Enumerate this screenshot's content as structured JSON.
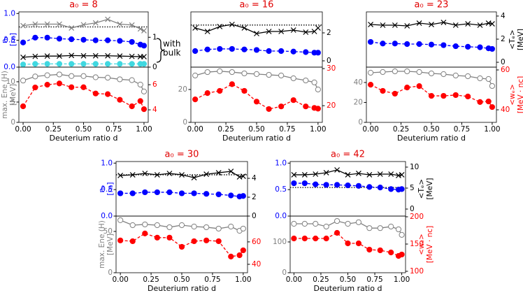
{
  "chart_data": [
    {
      "type": "line",
      "title": "a₀ = 8",
      "x": [
        0,
        0.1,
        0.2,
        0.3,
        0.4,
        0.5,
        0.6,
        0.7,
        0.8,
        0.9,
        0.97,
        1.0
      ],
      "xlim": [
        -0.035,
        1.035
      ],
      "ylim": [
        0,
        1.03
      ],
      "yticks": [
        {
          "value": 0,
          "label": "0.0"
        },
        {
          "value": 0.5,
          "label": "0.5"
        },
        {
          "value": 1,
          "label": "1.0"
        }
      ],
      "ycolor": "#0000ff",
      "ylabel": [
        "nₑ",
        "[n₀]"
      ],
      "y2lim": [
        0,
        1.85
      ],
      "y2ticks": [
        0,
        1
      ],
      "y2color": "#000000",
      "hline": 0.75,
      "annotation": [
        "with",
        "bulk"
      ],
      "series": [
        {
          "color": "#808080",
          "marker": "x",
          "filled": false,
          "linestyle": "solid",
          "axis": "y2",
          "values": [
            1.39,
            1.44,
            1.44,
            1.44,
            1.31,
            1.42,
            1.48,
            1.6,
            1.44,
            1.41,
            1.28,
            1.22
          ]
        },
        {
          "color": "#0000ff",
          "marker": "o",
          "filled": true,
          "linestyle": "dashed",
          "values": [
            0.46,
            0.55,
            0.55,
            0.53,
            0.52,
            0.51,
            0.5,
            0.5,
            0.49,
            0.47,
            0.42,
            0.4
          ]
        },
        {
          "color": "#000000",
          "marker": "x",
          "filled": false,
          "linestyle": "solid",
          "axis": "y2",
          "values": [
            0.33,
            0.36,
            0.37,
            0.37,
            0.39,
            0.38,
            0.38,
            0.38,
            0.37,
            0.36,
            0.35,
            0.35
          ]
        },
        {
          "color": "#40d8e0",
          "marker": "o",
          "filled": true,
          "linestyle": "dashed",
          "values": [
            0.05,
            0.06,
            0.06,
            0.06,
            0.06,
            0.06,
            0.06,
            0.06,
            0.06,
            0.06,
            0.06,
            0.06
          ]
        }
      ]
    },
    {
      "type": "line",
      "x": [
        0,
        0.1,
        0.2,
        0.3,
        0.4,
        0.5,
        0.6,
        0.7,
        0.8,
        0.9,
        0.97,
        1.0
      ],
      "xlim": [
        -0.035,
        1.035
      ],
      "xticks": [
        {
          "value": 0,
          "label": "0.00"
        },
        {
          "value": 0.25,
          "label": "0.25"
        },
        {
          "value": 0.5,
          "label": "0.50"
        },
        {
          "value": 0.75,
          "label": "0.75"
        },
        {
          "value": 1,
          "label": "1.00"
        }
      ],
      "xlabel": "Deuterium ratio d",
      "ylim": [
        0,
        13.6
      ],
      "yticks": [
        0,
        5,
        10
      ],
      "ycolor": "#808080",
      "ylabel": [
        "max. Ene (H)",
        "[MeV]"
      ],
      "y2lim": [
        3,
        7.4
      ],
      "y2ticks": [
        4,
        6
      ],
      "y2color": "#ff0000",
      "series": [
        {
          "color": "#808080",
          "marker": "o",
          "filled": false,
          "linestyle": "solid",
          "values": [
            10.3,
            11.3,
            11.6,
            11.8,
            11.4,
            11.4,
            11.1,
            11.0,
            10.6,
            10.4,
            9.3,
            7.6
          ]
        },
        {
          "color": "#ff0000",
          "marker": "o",
          "filled": true,
          "linestyle": "dashed",
          "axis": "y2",
          "values": [
            4.28,
            5.78,
            6.0,
            6.1,
            5.8,
            5.8,
            5.3,
            5.25,
            4.8,
            4.28,
            4.7,
            4.05
          ]
        }
      ]
    },
    {
      "type": "line",
      "title": "a₀ = 16",
      "x": [
        0,
        0.1,
        0.2,
        0.3,
        0.4,
        0.5,
        0.6,
        0.7,
        0.8,
        0.9,
        0.97,
        1.0
      ],
      "xlim": [
        -0.035,
        1.035
      ],
      "ylim": [
        0,
        1.03
      ],
      "ycolor": "#0000ff",
      "y2lim": [
        -0.45,
        3.5
      ],
      "y2ticks": [
        0,
        2
      ],
      "y2color": "#000000",
      "hline": 0.785,
      "series": [
        {
          "color": "#000000",
          "marker": "x",
          "filled": false,
          "linestyle": "solid",
          "axis": "y2",
          "values": [
            2.35,
            2.1,
            2.45,
            2.6,
            2.35,
            1.95,
            2.1,
            2.1,
            2.2,
            2.05,
            2.1,
            2.35
          ]
        },
        {
          "color": "#0000ff",
          "marker": "o",
          "filled": true,
          "linestyle": "dashed",
          "values": [
            0.3,
            0.33,
            0.34,
            0.34,
            0.33,
            0.32,
            0.3,
            0.3,
            0.29,
            0.28,
            0.27,
            0.27
          ]
        }
      ]
    },
    {
      "type": "line",
      "x": [
        0,
        0.1,
        0.2,
        0.3,
        0.4,
        0.5,
        0.6,
        0.7,
        0.8,
        0.9,
        0.97,
        1.0
      ],
      "xlim": [
        -0.035,
        1.035
      ],
      "xticks": [
        {
          "value": 0,
          "label": "0.00"
        },
        {
          "value": 0.25,
          "label": "0.25"
        },
        {
          "value": 0.5,
          "label": "0.50"
        },
        {
          "value": 0.75,
          "label": "0.75"
        },
        {
          "value": 1,
          "label": "1.00"
        }
      ],
      "xlabel": "Deuterium ratio d",
      "ylim": [
        0,
        33.6
      ],
      "yticks": [
        0,
        20
      ],
      "ycolor": "#808080",
      "y2lim": [
        15.5,
        30.4
      ],
      "y2ticks": [
        20,
        30
      ],
      "y2color": "#ff0000",
      "series": [
        {
          "color": "#808080",
          "marker": "o",
          "filled": false,
          "linestyle": "solid",
          "values": [
            28.5,
            30.6,
            31.1,
            30.6,
            29.8,
            29.4,
            28.9,
            28.5,
            26.8,
            25.5,
            24.3,
            20.0
          ]
        },
        {
          "color": "#ff0000",
          "marker": "o",
          "filled": true,
          "linestyle": "dashed",
          "axis": "y2",
          "values": [
            21.7,
            23.4,
            24.0,
            25.8,
            24.0,
            21.1,
            19.1,
            19.8,
            21.5,
            19.8,
            19.4,
            19.2
          ]
        }
      ]
    },
    {
      "type": "line",
      "title": "a₀ = 23",
      "x": [
        0,
        0.1,
        0.2,
        0.3,
        0.4,
        0.5,
        0.6,
        0.7,
        0.8,
        0.9,
        0.97,
        1.0
      ],
      "xlim": [
        -0.035,
        1.035
      ],
      "ylim": [
        0,
        1.03
      ],
      "ycolor": "#0000ff",
      "y2lim": [
        -0.42,
        4.36
      ],
      "y2ticks": [
        0,
        2,
        4
      ],
      "y2color": "#000000",
      "y2label": [
        "<Tₑ>",
        "[MeV]"
      ],
      "series": [
        {
          "color": "#000000",
          "marker": "x",
          "filled": false,
          "linestyle": "solid",
          "axis": "y2",
          "values": [
            3.27,
            3.21,
            3.21,
            3.15,
            3.39,
            3.27,
            3.45,
            3.21,
            3.33,
            3.21,
            3.39,
            3.33
          ]
        },
        {
          "color": "#0000ff",
          "marker": "o",
          "filled": true,
          "linestyle": "dashed",
          "values": [
            0.47,
            0.44,
            0.44,
            0.43,
            0.43,
            0.42,
            0.41,
            0.39,
            0.38,
            0.37,
            0.35,
            0.34
          ]
        }
      ]
    },
    {
      "type": "line",
      "x": [
        0,
        0.1,
        0.2,
        0.3,
        0.4,
        0.5,
        0.6,
        0.7,
        0.8,
        0.9,
        0.97,
        1.0
      ],
      "xlim": [
        -0.035,
        1.035
      ],
      "xticks": [
        {
          "value": 0,
          "label": "0.00"
        },
        {
          "value": 0.25,
          "label": "0.25"
        },
        {
          "value": 0.5,
          "label": "0.50"
        },
        {
          "value": 0.75,
          "label": "0.75"
        },
        {
          "value": 1,
          "label": "1.00"
        }
      ],
      "xlabel": "Deuterium ratio d",
      "ylim": [
        0,
        55.4
      ],
      "yticks": [
        0,
        20,
        40
      ],
      "ycolor": "#808080",
      "y2lim": [
        33.7,
        61.4
      ],
      "y2ticks": [
        40,
        60
      ],
      "y2color": "#ff0000",
      "y2label": [
        "<wₑ>",
        "[MeV · nc]"
      ],
      "series": [
        {
          "color": "#808080",
          "marker": "o",
          "filled": false,
          "linestyle": "solid",
          "values": [
            49.8,
            50.5,
            51.2,
            51.2,
            50.5,
            49.1,
            48.4,
            47.0,
            46.3,
            44.2,
            43.5,
            36.5
          ]
        },
        {
          "color": "#ff0000",
          "marker": "o",
          "filled": true,
          "linestyle": "dashed",
          "axis": "y2",
          "values": [
            52.6,
            49.5,
            48.1,
            51.2,
            51.9,
            47.0,
            47.0,
            47.4,
            46.7,
            43.9,
            44.2,
            41.4
          ]
        }
      ]
    },
    {
      "type": "line",
      "title": "a₀ = 30",
      "x": [
        0,
        0.1,
        0.2,
        0.3,
        0.4,
        0.5,
        0.6,
        0.7,
        0.8,
        0.9,
        0.97,
        1.0
      ],
      "xlim": [
        -0.035,
        1.035
      ],
      "ylim": [
        0,
        1.03
      ],
      "yticks": [
        {
          "value": 0,
          "label": "0.0"
        },
        {
          "value": 0.5,
          "label": "0.5"
        },
        {
          "value": 1,
          "label": "1.0"
        }
      ],
      "ycolor": "#0000ff",
      "ylabel": [
        "nₑ",
        "[n₀]"
      ],
      "y2lim": [
        0,
        5.78
      ],
      "y2ticks": [
        0,
        2,
        4
      ],
      "y2color": "#000000",
      "hline": 0.78,
      "series": [
        {
          "color": "#000000",
          "marker": "x",
          "filled": false,
          "linestyle": "solid",
          "axis": "y2",
          "values": [
            4.3,
            4.37,
            4.52,
            4.37,
            4.52,
            4.37,
            4.07,
            4.44,
            4.59,
            4.74,
            4.15,
            4.22
          ]
        },
        {
          "color": "#0000ff",
          "marker": "o",
          "filled": true,
          "linestyle": "dashed",
          "values": [
            0.43,
            0.43,
            0.45,
            0.45,
            0.45,
            0.43,
            0.43,
            0.42,
            0.41,
            0.39,
            0.37,
            0.38
          ]
        }
      ]
    },
    {
      "type": "line",
      "x": [
        0,
        0.1,
        0.2,
        0.3,
        0.4,
        0.5,
        0.6,
        0.7,
        0.8,
        0.9,
        0.97,
        1.0
      ],
      "xlim": [
        -0.035,
        1.035
      ],
      "xticks": [
        {
          "value": 0,
          "label": "0.00"
        },
        {
          "value": 0.25,
          "label": "0.25"
        },
        {
          "value": 0.5,
          "label": "0.50"
        },
        {
          "value": 0.75,
          "label": "0.75"
        },
        {
          "value": 1,
          "label": "1.00"
        }
      ],
      "xlabel": "Deuterium ratio d",
      "ylim": [
        0,
        68.6
      ],
      "yticks": [
        0,
        50
      ],
      "ycolor": "#808080",
      "ylabel": [
        "max. Ene (H)",
        "[MeV]"
      ],
      "y2lim": [
        32.5,
        83
      ],
      "y2ticks": [
        40,
        60
      ],
      "y2color": "#ff0000",
      "series": [
        {
          "color": "#808080",
          "marker": "o",
          "filled": false,
          "linestyle": "solid",
          "values": [
            63.6,
            57.6,
            58.5,
            57.6,
            55.1,
            57.6,
            55.9,
            55.1,
            53.4,
            55.9,
            50.8,
            53.4
          ]
        },
        {
          "color": "#ff0000",
          "marker": "o",
          "filled": true,
          "linestyle": "dashed",
          "axis": "y2",
          "values": [
            61.3,
            60.6,
            67.5,
            63.8,
            63.8,
            55.6,
            60.6,
            61.3,
            60.6,
            46.9,
            48.1,
            52.5
          ]
        }
      ]
    },
    {
      "type": "line",
      "title": "a₀ = 42",
      "x": [
        0,
        0.1,
        0.2,
        0.3,
        0.4,
        0.5,
        0.6,
        0.7,
        0.8,
        0.9,
        0.97,
        1.0
      ],
      "xlim": [
        -0.035,
        1.035
      ],
      "ylim": [
        0,
        1.03
      ],
      "yticks": [
        {
          "value": 0,
          "label": "0.0"
        },
        {
          "value": 0.5,
          "label": "0.5"
        },
        {
          "value": 1,
          "label": "1.0"
        }
      ],
      "ycolor": "#0000ff",
      "y2lim": [
        -1.67,
        11.33
      ],
      "y2ticks": [
        0,
        5,
        10
      ],
      "y2color": "#000000",
      "y2label": [
        "<Tₑ>",
        "[MeV]"
      ],
      "hline": 0.54,
      "series": [
        {
          "color": "#000000",
          "marker": "x",
          "filled": false,
          "linestyle": "solid",
          "axis": "y2",
          "values": [
            8.17,
            8.17,
            8.33,
            8.67,
            9.33,
            8.17,
            8.5,
            8.17,
            8.33,
            8.33,
            8.0,
            8.17
          ]
        },
        {
          "color": "#0000ff",
          "marker": "o",
          "filled": true,
          "linestyle": "dashed",
          "values": [
            0.62,
            0.62,
            0.6,
            0.59,
            0.59,
            0.58,
            0.57,
            0.55,
            0.54,
            0.51,
            0.5,
            0.51
          ]
        }
      ]
    },
    {
      "type": "line",
      "x": [
        0,
        0.1,
        0.2,
        0.3,
        0.4,
        0.5,
        0.6,
        0.7,
        0.8,
        0.9,
        0.97,
        1.0
      ],
      "xlim": [
        -0.035,
        1.035
      ],
      "xticks": [
        {
          "value": 0,
          "label": "0.00"
        },
        {
          "value": 0.25,
          "label": "0.25"
        },
        {
          "value": 0.5,
          "label": "0.50"
        },
        {
          "value": 0.75,
          "label": "0.75"
        },
        {
          "value": 1,
          "label": "1.00"
        }
      ],
      "xlabel": "Deuterium ratio d",
      "ylim": [
        0,
        184
      ],
      "yticks": [
        0,
        100
      ],
      "ycolor": "#808080",
      "y2lim": [
        97.4,
        201.3
      ],
      "y2ticks": [
        100,
        150,
        200
      ],
      "y2color": "#ff0000",
      "y2label": [
        "<wₑ>",
        "[MeV · nc]"
      ],
      "series": [
        {
          "color": "#808080",
          "marker": "o",
          "filled": false,
          "linestyle": "solid",
          "values": [
            159,
            159,
            159,
            150,
            168,
            159,
            164,
            145,
            145,
            150,
            141,
            123
          ]
        },
        {
          "color": "#ff0000",
          "marker": "o",
          "filled": true,
          "linestyle": "dashed",
          "axis": "y2",
          "values": [
            160.3,
            160.3,
            160.3,
            160.3,
            170.5,
            151.3,
            151.3,
            139.7,
            138.5,
            134.6,
            128.2,
            130.8
          ]
        }
      ]
    }
  ]
}
